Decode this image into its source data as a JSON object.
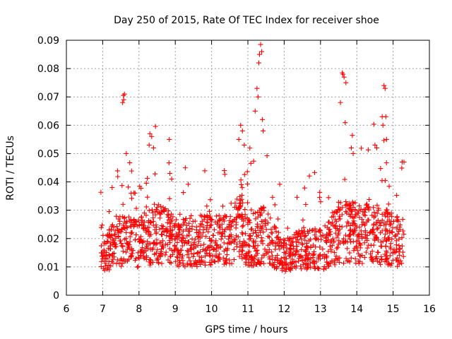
{
  "chart_data": {
    "type": "scatter",
    "title": "Day 250 of 2015, Rate Of TEC Index for receiver shoe",
    "xlabel": "GPS time / hours",
    "ylabel": "ROTI / TECUs",
    "xlim": [
      6,
      16
    ],
    "ylim": [
      0,
      0.09
    ],
    "x_ticks": [
      "6",
      "7",
      "8",
      "9",
      "10",
      "11",
      "12",
      "13",
      "14",
      "15",
      "16"
    ],
    "y_ticks": [
      "0",
      "0.01",
      "0.02",
      "0.03",
      "0.04",
      "0.05",
      "0.06",
      "0.07",
      "0.08",
      "0.09"
    ],
    "grid": true,
    "marker": "+",
    "color": "#ff0000",
    "point_count": 1600,
    "time_range": [
      6.95,
      15.3
    ],
    "background_level": 0.012,
    "activity_profile": [
      {
        "t": 7.0,
        "level": 0.011
      },
      {
        "t": 7.5,
        "level": 0.017
      },
      {
        "t": 8.0,
        "level": 0.016
      },
      {
        "t": 8.5,
        "level": 0.02
      },
      {
        "t": 9.0,
        "level": 0.016
      },
      {
        "t": 9.5,
        "level": 0.016
      },
      {
        "t": 10.0,
        "level": 0.018
      },
      {
        "t": 10.5,
        "level": 0.016
      },
      {
        "t": 10.8,
        "level": 0.026
      },
      {
        "t": 11.0,
        "level": 0.016
      },
      {
        "t": 11.4,
        "level": 0.019
      },
      {
        "t": 12.0,
        "level": 0.011
      },
      {
        "t": 12.5,
        "level": 0.014
      },
      {
        "t": 13.0,
        "level": 0.013
      },
      {
        "t": 13.5,
        "level": 0.02
      },
      {
        "t": 14.0,
        "level": 0.02
      },
      {
        "t": 14.5,
        "level": 0.02
      },
      {
        "t": 15.0,
        "level": 0.017
      },
      {
        "t": 15.3,
        "level": 0.016
      }
    ],
    "spikes": [
      {
        "x": 7.57,
        "y": 0.0705
      },
      {
        "x": 7.58,
        "y": 0.069
      },
      {
        "x": 7.6,
        "y": 0.071
      },
      {
        "x": 7.55,
        "y": 0.068
      },
      {
        "x": 7.65,
        "y": 0.05
      },
      {
        "x": 8.3,
        "y": 0.057
      },
      {
        "x": 8.35,
        "y": 0.056
      },
      {
        "x": 8.28,
        "y": 0.053
      },
      {
        "x": 8.4,
        "y": 0.052
      },
      {
        "x": 8.85,
        "y": 0.043
      },
      {
        "x": 8.9,
        "y": 0.041
      },
      {
        "x": 10.8,
        "y": 0.06
      },
      {
        "x": 10.85,
        "y": 0.058
      },
      {
        "x": 10.75,
        "y": 0.055
      },
      {
        "x": 10.9,
        "y": 0.053
      },
      {
        "x": 11.2,
        "y": 0.065
      },
      {
        "x": 11.25,
        "y": 0.073
      },
      {
        "x": 11.28,
        "y": 0.07
      },
      {
        "x": 11.3,
        "y": 0.082
      },
      {
        "x": 11.32,
        "y": 0.085
      },
      {
        "x": 11.35,
        "y": 0.0885
      },
      {
        "x": 11.38,
        "y": 0.086
      },
      {
        "x": 11.4,
        "y": 0.062
      },
      {
        "x": 11.42,
        "y": 0.058
      },
      {
        "x": 13.55,
        "y": 0.068
      },
      {
        "x": 13.6,
        "y": 0.0785
      },
      {
        "x": 13.62,
        "y": 0.078
      },
      {
        "x": 13.65,
        "y": 0.077
      },
      {
        "x": 13.7,
        "y": 0.075
      },
      {
        "x": 13.85,
        "y": 0.052
      },
      {
        "x": 13.9,
        "y": 0.05
      },
      {
        "x": 14.5,
        "y": 0.053
      },
      {
        "x": 14.55,
        "y": 0.052
      },
      {
        "x": 14.7,
        "y": 0.063
      },
      {
        "x": 14.75,
        "y": 0.074
      },
      {
        "x": 14.78,
        "y": 0.073
      },
      {
        "x": 14.8,
        "y": 0.063
      },
      {
        "x": 14.72,
        "y": 0.06
      },
      {
        "x": 14.82,
        "y": 0.055
      },
      {
        "x": 15.25,
        "y": 0.047
      },
      {
        "x": 15.3,
        "y": 0.047
      }
    ]
  }
}
